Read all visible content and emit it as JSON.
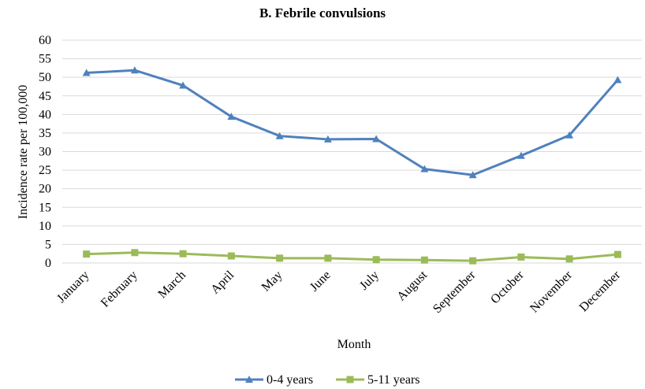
{
  "chart_data": {
    "type": "line",
    "title": "B. Febrile convulsions",
    "xlabel": "Month",
    "ylabel": "Incidence rate per 100,000",
    "categories": [
      "January",
      "February",
      "March",
      "April",
      "May",
      "June",
      "July",
      "August",
      "September",
      "October",
      "November",
      "December"
    ],
    "series": [
      {
        "name": "0-4 years",
        "color": "#4f81bd",
        "marker": "triangle",
        "values": [
          51.2,
          51.9,
          47.8,
          39.4,
          34.2,
          33.3,
          33.4,
          25.3,
          23.7,
          28.9,
          34.4,
          49.3
        ]
      },
      {
        "name": "5-11 years",
        "color": "#9bbb59",
        "marker": "square",
        "values": [
          2.4,
          2.8,
          2.5,
          1.9,
          1.3,
          1.3,
          0.9,
          0.8,
          0.6,
          1.6,
          1.1,
          2.3
        ]
      }
    ],
    "ylim": [
      0,
      60
    ],
    "yticks": [
      0,
      5,
      10,
      15,
      20,
      25,
      30,
      35,
      40,
      45,
      50,
      55,
      60
    ],
    "grid": true,
    "legend": "bottom"
  }
}
